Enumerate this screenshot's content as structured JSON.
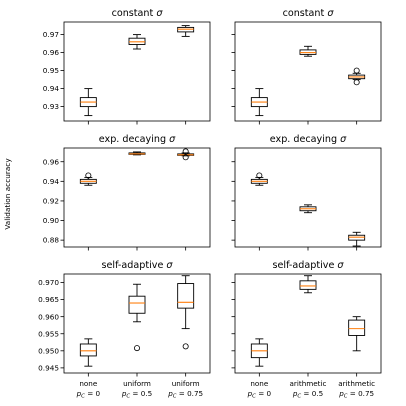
{
  "figure": {
    "ylabel": "Validation accuracy",
    "categories": {
      "left": [
        {
          "line1": "none",
          "line2_prefix": "p",
          "line2_sub": "C",
          "line2_suffix": " = 0"
        },
        {
          "line1": "uniform",
          "line2_prefix": "p",
          "line2_sub": "C",
          "line2_suffix": " = 0.5"
        },
        {
          "line1": "uniform",
          "line2_prefix": "p",
          "line2_sub": "C",
          "line2_suffix": " = 0.75"
        }
      ],
      "right": [
        {
          "line1": "none",
          "line2_prefix": "p",
          "line2_sub": "C",
          "line2_suffix": " = 0"
        },
        {
          "line1": "arithmetic",
          "line2_prefix": "p",
          "line2_sub": "C",
          "line2_suffix": " = 0.5"
        },
        {
          "line1": "arithmetic",
          "line2_prefix": "p",
          "line2_sub": "C",
          "line2_suffix": " = 0.75"
        }
      ]
    },
    "colors": {
      "box": "#000000",
      "median": "#ff7f0e"
    }
  },
  "chart_data": [
    {
      "type": "box",
      "title": "constant σ",
      "title_prefix": "constant ",
      "ylim": [
        0.922,
        0.977
      ],
      "yticks": [
        0.93,
        0.94,
        0.95,
        0.96,
        0.97
      ],
      "ytick_labels": [
        "0.93",
        "0.94",
        "0.95",
        "0.96",
        "0.97"
      ],
      "category_set": "left",
      "show_ylabel": false,
      "boxes": [
        {
          "whislo": 0.925,
          "q1": 0.93,
          "med": 0.9325,
          "q3": 0.935,
          "whishi": 0.94,
          "fliers": []
        },
        {
          "whislo": 0.962,
          "q1": 0.9645,
          "med": 0.966,
          "q3": 0.968,
          "whishi": 0.97,
          "fliers": []
        },
        {
          "whislo": 0.969,
          "q1": 0.9715,
          "med": 0.973,
          "q3": 0.974,
          "whishi": 0.975,
          "fliers": []
        }
      ]
    },
    {
      "type": "box",
      "title": "constant σ",
      "title_prefix": "constant ",
      "ylim": [
        0.922,
        0.977
      ],
      "yticks": [
        0.93,
        0.94,
        0.95,
        0.96,
        0.97
      ],
      "ytick_labels": [],
      "category_set": "right",
      "show_ylabel": false,
      "boxes": [
        {
          "whislo": 0.925,
          "q1": 0.93,
          "med": 0.9325,
          "q3": 0.935,
          "whishi": 0.94,
          "fliers": []
        },
        {
          "whislo": 0.958,
          "q1": 0.959,
          "med": 0.96,
          "q3": 0.9615,
          "whishi": 0.9635,
          "fliers": []
        },
        {
          "whislo": 0.945,
          "q1": 0.9455,
          "med": 0.9465,
          "q3": 0.9475,
          "whishi": 0.9485,
          "fliers": [
            0.95,
            0.9435
          ]
        }
      ]
    },
    {
      "type": "box",
      "title": "exp. decaying σ",
      "title_prefix": "exp. decaying ",
      "ylim": [
        0.873,
        0.974
      ],
      "yticks": [
        0.88,
        0.9,
        0.92,
        0.94,
        0.96
      ],
      "ytick_labels": [
        "0.88",
        "0.90",
        "0.92",
        "0.94",
        "0.96"
      ],
      "category_set": "left",
      "show_ylabel": true,
      "boxes": [
        {
          "whislo": 0.936,
          "q1": 0.938,
          "med": 0.94,
          "q3": 0.942,
          "whishi": 0.944,
          "fliers": [
            0.946
          ]
        },
        {
          "whislo": 0.967,
          "q1": 0.9675,
          "med": 0.968,
          "q3": 0.969,
          "whishi": 0.97,
          "fliers": []
        },
        {
          "whislo": 0.966,
          "q1": 0.9665,
          "med": 0.967,
          "q3": 0.968,
          "whishi": 0.969,
          "fliers": [
            0.9705,
            0.9645
          ]
        }
      ]
    },
    {
      "type": "box",
      "title": "exp. decaying σ",
      "title_prefix": "exp. decaying ",
      "ylim": [
        0.873,
        0.974
      ],
      "yticks": [
        0.88,
        0.9,
        0.92,
        0.94,
        0.96
      ],
      "ytick_labels": [],
      "category_set": "right",
      "show_ylabel": false,
      "boxes": [
        {
          "whislo": 0.936,
          "q1": 0.938,
          "med": 0.94,
          "q3": 0.942,
          "whishi": 0.944,
          "fliers": [
            0.946
          ]
        },
        {
          "whislo": 0.908,
          "q1": 0.91,
          "med": 0.912,
          "q3": 0.914,
          "whishi": 0.916,
          "fliers": []
        },
        {
          "whislo": 0.874,
          "q1": 0.88,
          "med": 0.883,
          "q3": 0.885,
          "whishi": 0.888,
          "fliers": []
        }
      ]
    },
    {
      "type": "box",
      "title": "self-adaptive σ",
      "title_prefix": "self-adaptive ",
      "ylim": [
        0.9435,
        0.9725
      ],
      "yticks": [
        0.945,
        0.95,
        0.955,
        0.96,
        0.965,
        0.97
      ],
      "ytick_labels": [
        "0.945",
        "0.950",
        "0.955",
        "0.960",
        "0.965",
        "0.970"
      ],
      "category_set": "left",
      "show_ylabel": false,
      "boxes": [
        {
          "whislo": 0.9455,
          "q1": 0.9485,
          "med": 0.95,
          "q3": 0.952,
          "whishi": 0.9535,
          "fliers": []
        },
        {
          "whislo": 0.9585,
          "q1": 0.961,
          "med": 0.964,
          "q3": 0.966,
          "whishi": 0.9695,
          "fliers": [
            0.9508
          ]
        },
        {
          "whislo": 0.9565,
          "q1": 0.9625,
          "med": 0.9642,
          "q3": 0.9697,
          "whishi": 0.972,
          "fliers": [
            0.9513
          ]
        }
      ]
    },
    {
      "type": "box",
      "title": "self-adaptive σ",
      "title_prefix": "self-adaptive ",
      "ylim": [
        0.9435,
        0.9725
      ],
      "yticks": [
        0.945,
        0.95,
        0.955,
        0.96,
        0.965,
        0.97
      ],
      "ytick_labels": [],
      "category_set": "right",
      "show_ylabel": false,
      "boxes": [
        {
          "whislo": 0.9455,
          "q1": 0.948,
          "med": 0.95,
          "q3": 0.952,
          "whishi": 0.9535,
          "fliers": []
        },
        {
          "whislo": 0.967,
          "q1": 0.968,
          "med": 0.969,
          "q3": 0.9705,
          "whishi": 0.972,
          "fliers": []
        },
        {
          "whislo": 0.95,
          "q1": 0.9545,
          "med": 0.9565,
          "q3": 0.959,
          "whishi": 0.96,
          "fliers": []
        }
      ]
    }
  ]
}
